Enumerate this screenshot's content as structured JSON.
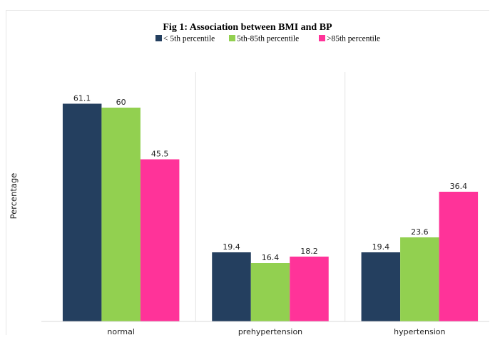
{
  "chart_data": {
    "type": "bar",
    "title": "Fig 1: Association between BMI and BP",
    "xlabel": "",
    "ylabel": "Percentage",
    "categories": [
      "normal",
      "prehypertension",
      "hypertension"
    ],
    "series": [
      {
        "name": "< 5th percentile",
        "color": "#243f5f",
        "values": [
          61.1,
          19.4,
          19.4
        ]
      },
      {
        "name": "5th-85th percentile",
        "color": "#92d050",
        "values": [
          60,
          16.4,
          23.6
        ]
      },
      {
        "name": ">85th percentile",
        "color": "#ff3399",
        "values": [
          45.5,
          18.2,
          36.4
        ]
      }
    ],
    "ylim": [
      0,
      70
    ],
    "grid": false,
    "legend_position": "top-center"
  }
}
